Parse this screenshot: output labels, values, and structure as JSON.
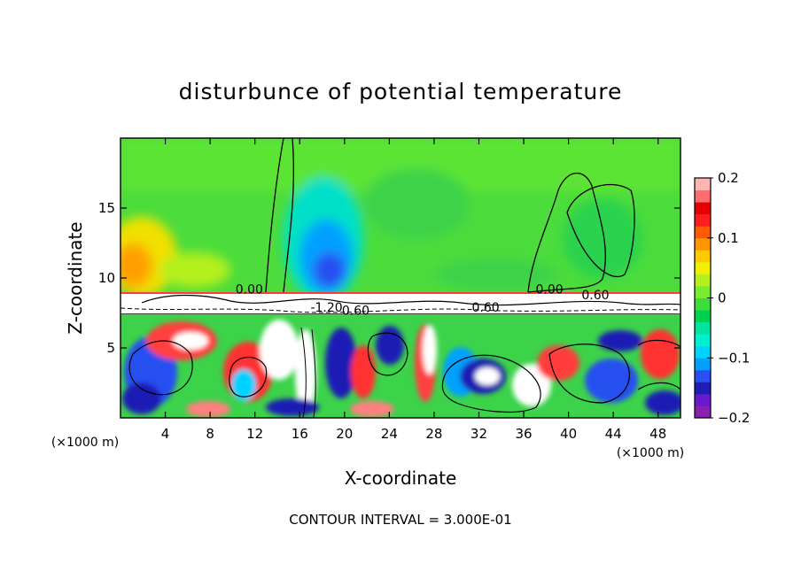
{
  "chart_data": {
    "type": "heatmap",
    "title": "disturbunce of potential temperature",
    "xlabel": "X-coordinate",
    "ylabel": "Z-coordinate",
    "x_unit_left": "(×1000 m)",
    "x_unit_right": "(×1000 m)",
    "xlim": [
      0,
      50
    ],
    "ylim": [
      0,
      20
    ],
    "x_ticks": [
      4,
      8,
      12,
      16,
      20,
      24,
      28,
      32,
      36,
      40,
      44,
      48
    ],
    "y_ticks": [
      5,
      10,
      15
    ],
    "footer": "CONTOUR INTERVAL = 3.000E-01",
    "colorbar": {
      "range": [
        -0.2,
        0.2
      ],
      "ticks": [
        {
          "value": 0.2,
          "label": "0.2"
        },
        {
          "value": 0.1,
          "label": "0.1"
        },
        {
          "value": 0,
          "label": "0"
        },
        {
          "value": -0.1,
          "label": "−0.1"
        },
        {
          "value": -0.2,
          "label": "−0.2"
        }
      ],
      "colors": [
        "#8a1fb0",
        "#6a1acc",
        "#1e1eb4",
        "#2850f0",
        "#00a0ff",
        "#00d2ff",
        "#00f0d2",
        "#00e6a0",
        "#00d24e",
        "#3cdc3c",
        "#78ec2e",
        "#b4f01e",
        "#f0f000",
        "#ffc800",
        "#ff9600",
        "#ff5a00",
        "#ff1e1e",
        "#e60000",
        "#ff6e6e",
        "#ffb4b4"
      ]
    },
    "contour_labels": [
      {
        "x": 11.5,
        "z": 9.2,
        "label": "0.00"
      },
      {
        "x": 38.3,
        "z": 9.2,
        "label": "0.00"
      },
      {
        "x": 42.4,
        "z": 8.8,
        "label": "0.60"
      },
      {
        "x": 18.4,
        "z": 7.9,
        "label": "-1.20"
      },
      {
        "x": 21.0,
        "z": 7.7,
        "label": "0.60"
      },
      {
        "x": 32.6,
        "z": 7.9,
        "label": "0.60"
      }
    ],
    "field_description": "upper layer mostly green (≈0) with orange/yellow positive region at left (z 10–14) and blue/cyan negative plume near x 16–22; white inversion band near z 8; lower layer (z 0–7) turbulent mixed red/white/blue/green structures"
  }
}
